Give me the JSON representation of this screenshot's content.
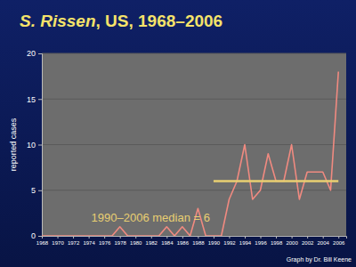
{
  "chart_data": {
    "type": "line",
    "title": "S. Rissen, US, 1968–2006",
    "y_label": "reported cases",
    "source": "Graph by Dr. Bill Keene",
    "x": [
      1968,
      1969,
      1970,
      1971,
      1972,
      1973,
      1974,
      1975,
      1976,
      1977,
      1978,
      1979,
      1980,
      1981,
      1982,
      1983,
      1984,
      1985,
      1986,
      1987,
      1988,
      1989,
      1990,
      1991,
      1992,
      1993,
      1994,
      1995,
      1996,
      1997,
      1998,
      1999,
      2000,
      2001,
      2002,
      2003,
      2004,
      2005,
      2006
    ],
    "values": [
      0,
      0,
      0,
      0,
      0,
      0,
      0,
      0,
      0,
      0,
      1,
      0,
      0,
      0,
      0,
      0,
      1,
      0,
      1,
      0,
      3,
      0,
      0,
      0,
      4,
      6,
      10,
      4,
      5,
      9,
      6,
      6,
      10,
      4,
      7,
      7,
      7,
      5,
      18
    ],
    "color": "#f08a80",
    "xlim": [
      1968,
      2007
    ],
    "xticks": [
      1968,
      1970,
      1972,
      1974,
      1976,
      1978,
      1980,
      1982,
      1984,
      1986,
      1988,
      1990,
      1992,
      1994,
      1996,
      1998,
      2000,
      2002,
      2004,
      2006
    ],
    "ylim": [
      0,
      20
    ],
    "yticks": [
      0,
      5,
      10,
      15,
      20
    ],
    "grid": true,
    "reference_line": {
      "label": "1990–2006 median = 6",
      "x": [
        1990,
        2006
      ],
      "value": 6,
      "color": "#e8cf72"
    }
  }
}
